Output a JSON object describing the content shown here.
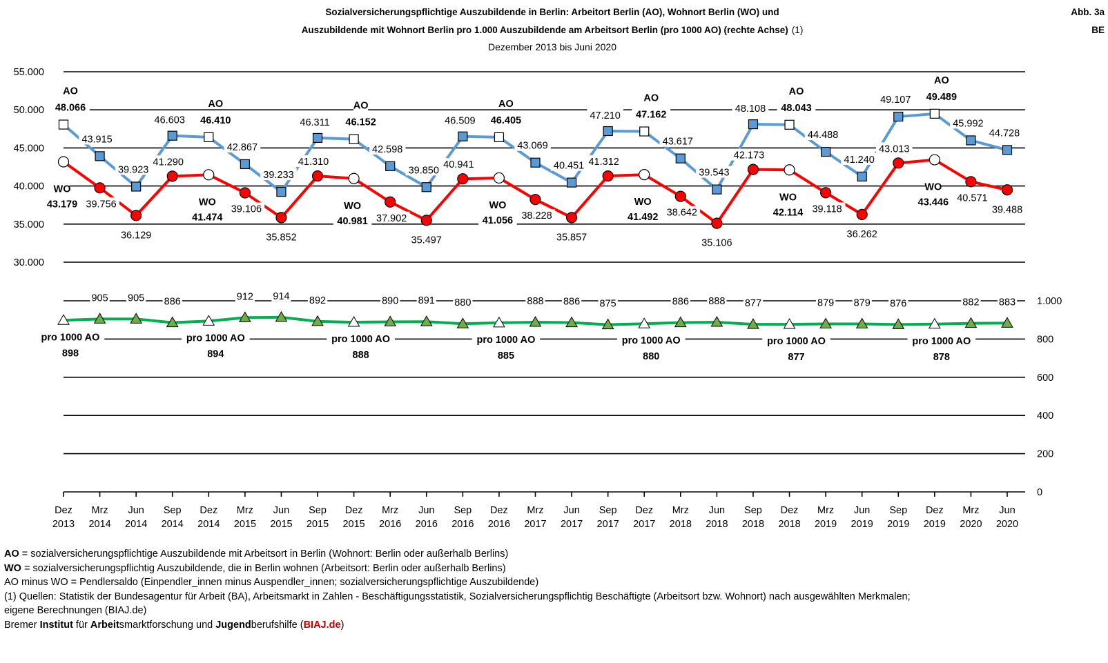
{
  "header": {
    "title_line1": "Sozialversicherungspflichtige Auszubildende in Berlin: Arbeitort Berlin (AO), Wohnort Berlin (WO) und",
    "title_line2": "Auszubildende mit Wohnort Berlin pro 1.000  Auszubildende am Arbeitsort Berlin (pro 1000 AO) (rechte Achse)",
    "title_line2_suffix": "(1)",
    "subtitle": "Dezember 2013 bis Juni 2020",
    "fig_label": "Abb. 3a",
    "region_label": "BE"
  },
  "chart_data": {
    "type": "line",
    "categories": [
      [
        "Dez",
        "2013"
      ],
      [
        "Mrz",
        "2014"
      ],
      [
        "Jun",
        "2014"
      ],
      [
        "Sep",
        "2014"
      ],
      [
        "Dez",
        "2014"
      ],
      [
        "Mrz",
        "2015"
      ],
      [
        "Jun",
        "2015"
      ],
      [
        "Sep",
        "2015"
      ],
      [
        "Dez",
        "2015"
      ],
      [
        "Mrz",
        "2016"
      ],
      [
        "Jun",
        "2016"
      ],
      [
        "Sep",
        "2016"
      ],
      [
        "Dez",
        "2016"
      ],
      [
        "Mrz",
        "2017"
      ],
      [
        "Jun",
        "2017"
      ],
      [
        "Sep",
        "2017"
      ],
      [
        "Dez",
        "2017"
      ],
      [
        "Mrz",
        "2018"
      ],
      [
        "Jun",
        "2018"
      ],
      [
        "Sep",
        "2018"
      ],
      [
        "Dez",
        "2018"
      ],
      [
        "Mrz",
        "2019"
      ],
      [
        "Jun",
        "2019"
      ],
      [
        "Sep",
        "2019"
      ],
      [
        "Dez",
        "2019"
      ],
      [
        "Mrz",
        "2020"
      ],
      [
        "Jun",
        "2020"
      ]
    ],
    "left_axis": {
      "range": [
        30000,
        55000
      ],
      "ticks": [
        "30.000",
        "35.000",
        "40.000",
        "45.000",
        "50.000",
        "55.000"
      ],
      "tick_values": [
        30000,
        35000,
        40000,
        45000,
        50000,
        55000
      ]
    },
    "right_axis": {
      "range": [
        0,
        1000
      ],
      "ticks": [
        "0",
        "200",
        "400",
        "600",
        "800",
        "1.000"
      ],
      "tick_values": [
        0,
        200,
        400,
        600,
        800,
        1000
      ]
    },
    "series": [
      {
        "name": "AO",
        "axis": "left",
        "color": "#5b9bd5",
        "marker": "square",
        "values": [
          48066,
          43915,
          39923,
          46603,
          46410,
          42867,
          39233,
          46311,
          46152,
          42598,
          39850,
          46509,
          46405,
          43069,
          40451,
          47210,
          47162,
          43617,
          39543,
          48108,
          48043,
          44488,
          41240,
          49107,
          49489,
          45992,
          44728
        ],
        "labels": [
          "48.066",
          "43.915",
          "39.923",
          "46.603",
          "46.410",
          "42.867",
          "39.233",
          "46.311",
          "46.152",
          "42.598",
          "39.850",
          "46.509",
          "46.405",
          "43.069",
          "40.451",
          "47.210",
          "47.162",
          "43.617",
          "39.543",
          "48.108",
          "48.043",
          "44.488",
          "41.240",
          "49.107",
          "49.489",
          "45.992",
          "44.728"
        ]
      },
      {
        "name": "WO",
        "axis": "left",
        "color": "#ff0000",
        "marker": "circle",
        "values": [
          43179,
          39756,
          36129,
          41290,
          41474,
          39106,
          35852,
          41310,
          40981,
          37902,
          35497,
          40941,
          41056,
          38228,
          35857,
          41312,
          41492,
          38642,
          35106,
          42173,
          42114,
          39118,
          36262,
          43013,
          43446,
          40571,
          39488
        ],
        "labels": [
          "43.179",
          "39.756",
          "36.129",
          "41.290",
          "41.474",
          "39.106",
          "35.852",
          "41.310",
          "40.981",
          "37.902",
          "35.497",
          "40.941",
          "41.056",
          "38.228",
          "35.857",
          "41.312",
          "41.492",
          "38.642",
          "35.106",
          "42.173",
          "42.114",
          "39.118",
          "36.262",
          "43.013",
          "43.446",
          "40.571",
          "39.488"
        ]
      },
      {
        "name": "pro 1000 AO",
        "axis": "right",
        "color": "#00b050",
        "marker": "triangle",
        "values": [
          898,
          905,
          905,
          886,
          894,
          912,
          914,
          892,
          888,
          890,
          891,
          880,
          885,
          888,
          886,
          875,
          880,
          886,
          888,
          877,
          877,
          879,
          879,
          876,
          878,
          882,
          883
        ],
        "labels": [
          "898",
          "905",
          "905",
          "886",
          "894",
          "912",
          "914",
          "892",
          "888",
          "890",
          "891",
          "880",
          "885",
          "888",
          "886",
          "875",
          "880",
          "886",
          "888",
          "877",
          "877",
          "879",
          "879",
          "876",
          "878",
          "882",
          "883"
        ]
      }
    ],
    "series_tags": {
      "ao": "AO",
      "wo": "WO",
      "pro": "pro 1000 AO"
    }
  },
  "notes": {
    "ao_key": "AO",
    "ao_text": " = sozialversicherungspflichtige Auszubildende mit Arbeitsort in Berlin (Wohnort: Berlin oder außerhalb Berlins)",
    "wo_key": "WO",
    "wo_text": " = sozialversicherungspflichtig Auszubildende, die in Berlin wohnen (Arbeitsort: Berlin oder außerhalb Berlins)",
    "saldo": "AO minus WO = Pendlersaldo (Einpendler_innen minus Auspendler_innen; sozialversicherungspflichtige Auszubildende)",
    "sources_1": "(1) Quellen: Statistik der Bundesagentur für Arbeit (BA), Arbeitsmarkt in Zahlen - Beschäftigungsstatistik, Sozialversicherungspflichtig Beschäftigte (Arbeitsort bzw. Wohnort) nach ausgewählten Merkmalen;",
    "sources_2": "eigene Berechnungen (BIAJ.de)",
    "footer_pre": "Bremer ",
    "footer_w1": "Institut",
    "footer_t1": " für ",
    "footer_w2": "Arbeit",
    "footer_t2": "smarktforschung und ",
    "footer_w3": "Jugend",
    "footer_t3": "berufshilfe (",
    "footer_link": "BIAJ.de",
    "footer_end": ")"
  }
}
